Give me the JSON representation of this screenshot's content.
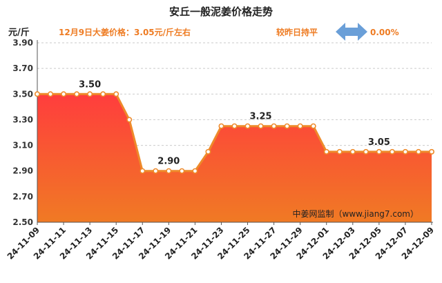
{
  "header": {
    "title": "安丘一般泥姜价格走势",
    "price_note": "12月9日大姜价格：3.05元/斤左右",
    "compare_label": "较昨日持平",
    "change_pct": "0.00%",
    "arrow_icon": "left-right-arrow-icon"
  },
  "colors": {
    "line": "#ee8a2a",
    "area_top": "#ff3d3d",
    "area_bottom": "#f07a24",
    "arrow": "#6a9fd8",
    "info_text": "#ee7b22"
  },
  "chart_data": {
    "type": "area",
    "title": "安丘一般泥姜价格走势",
    "ylabel": "元/斤",
    "xlabel": "",
    "ylim": [
      2.5,
      3.9
    ],
    "yticks": [
      "2.50",
      "2.70",
      "2.90",
      "3.10",
      "3.30",
      "3.50",
      "3.70",
      "3.90"
    ],
    "xtick_labels": [
      "24-11-09",
      "24-11-11",
      "24-11-13",
      "24-11-15",
      "24-11-17",
      "24-11-19",
      "24-11-21",
      "24-11-23",
      "24-11-25",
      "24-11-27",
      "24-11-29",
      "24-12-01",
      "24-12-03",
      "24-12-05",
      "24-12-07",
      "24-12-09"
    ],
    "x": [
      "24-11-09",
      "24-11-10",
      "24-11-11",
      "24-11-12",
      "24-11-13",
      "24-11-14",
      "24-11-15",
      "24-11-16",
      "24-11-17",
      "24-11-18",
      "24-11-19",
      "24-11-20",
      "24-11-21",
      "24-11-22",
      "24-11-23",
      "24-11-24",
      "24-11-25",
      "24-11-26",
      "24-11-27",
      "24-11-28",
      "24-11-29",
      "24-11-30",
      "24-12-01",
      "24-12-02",
      "24-12-03",
      "24-12-04",
      "24-12-05",
      "24-12-06",
      "24-12-07",
      "24-12-08",
      "24-12-09"
    ],
    "values": [
      3.5,
      3.5,
      3.5,
      3.5,
      3.5,
      3.5,
      3.5,
      3.3,
      2.9,
      2.9,
      2.9,
      2.9,
      2.9,
      3.05,
      3.25,
      3.25,
      3.25,
      3.25,
      3.25,
      3.25,
      3.25,
      3.25,
      3.05,
      3.05,
      3.05,
      3.05,
      3.05,
      3.05,
      3.05,
      3.05,
      3.05
    ],
    "data_labels": [
      {
        "x": "24-11-13",
        "text": "3.50"
      },
      {
        "x": "24-11-19",
        "text": "2.90"
      },
      {
        "x": "24-11-26",
        "text": "3.25"
      },
      {
        "x": "24-12-05",
        "text": "3.05"
      }
    ],
    "grid": "horizontal dashed",
    "watermark": "中姜网监制（www.jiang7.com）"
  }
}
